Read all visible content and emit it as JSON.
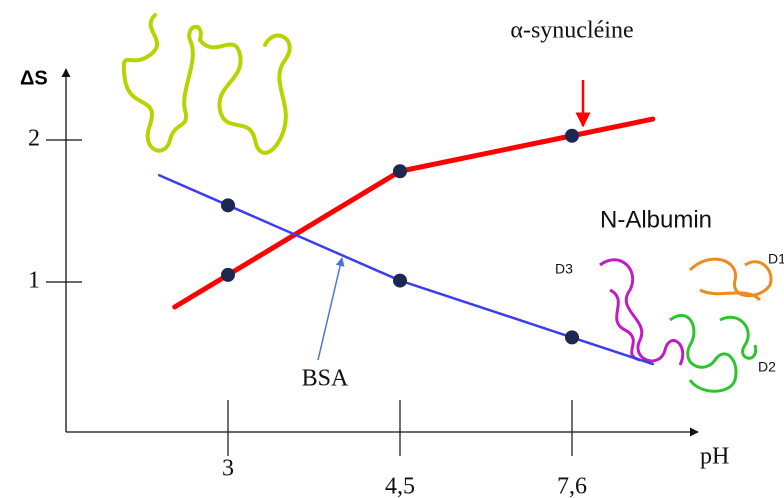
{
  "chart_data": {
    "type": "line",
    "x_label": "pH",
    "y_label": "ΔS",
    "categories": [
      "3",
      "4,5",
      "7,6"
    ],
    "series": [
      {
        "name": "α-synucléine",
        "color": "#ff0000",
        "values": [
          1.05,
          1.78,
          2.03
        ]
      },
      {
        "name": "BSA",
        "color": "#3c3cf0",
        "values": [
          1.54,
          1.01,
          0.61
        ]
      }
    ],
    "ylim": [
      0,
      2.5
    ],
    "yticks": [
      1,
      2
    ],
    "annotations": [
      "N-Albumin",
      "D1",
      "D2",
      "D3"
    ]
  }
}
